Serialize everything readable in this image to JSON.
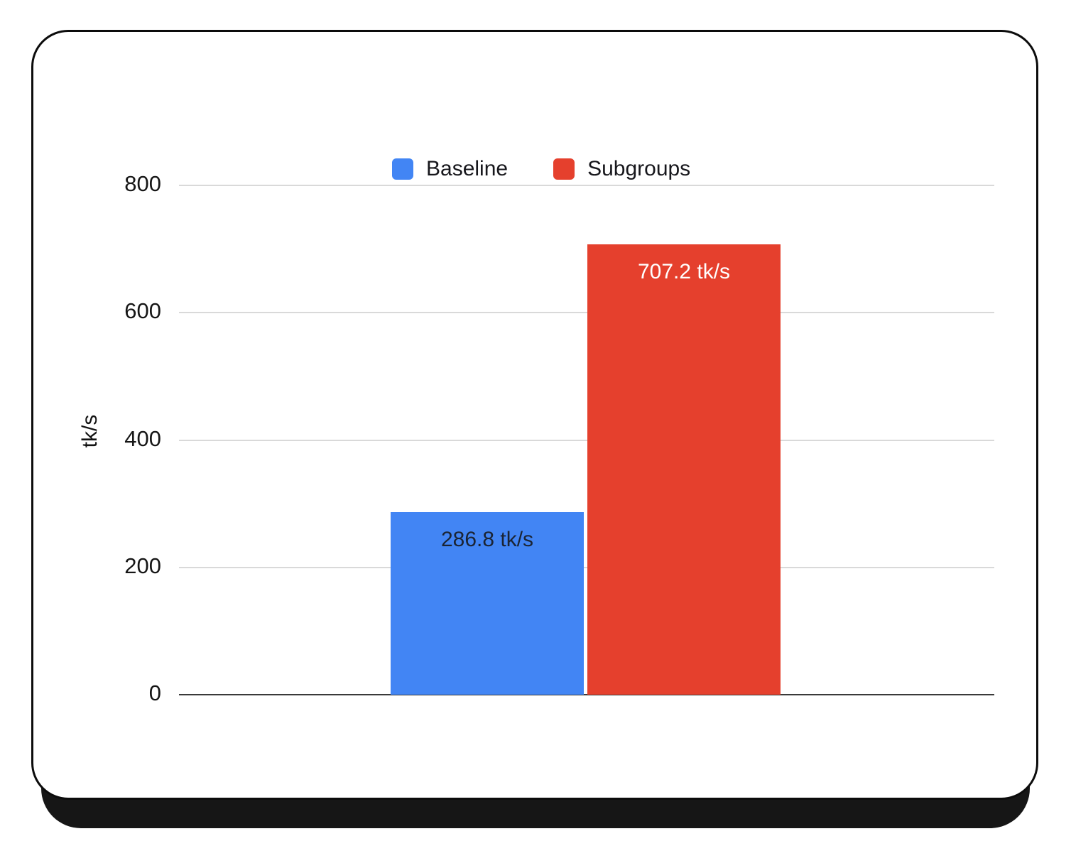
{
  "chart_data": {
    "type": "bar",
    "categories": [
      ""
    ],
    "series": [
      {
        "name": "Baseline",
        "values": [
          286.8
        ],
        "color": "#4285f4",
        "label": "286.8 tk/s",
        "label_color": "#1b2433"
      },
      {
        "name": "Subgroups",
        "values": [
          707.2
        ],
        "color": "#e5402d",
        "label": "707.2 tk/s",
        "label_color": "#ffffff"
      }
    ],
    "title": "",
    "xlabel": "",
    "ylabel": "tk/s",
    "ylim": [
      0,
      800
    ],
    "yticks": [
      0,
      200,
      400,
      600,
      800
    ],
    "grid": true,
    "legend_position": "top",
    "gridline_color": "#d9d9d9",
    "axis_line_color": "#3a3a3a"
  }
}
